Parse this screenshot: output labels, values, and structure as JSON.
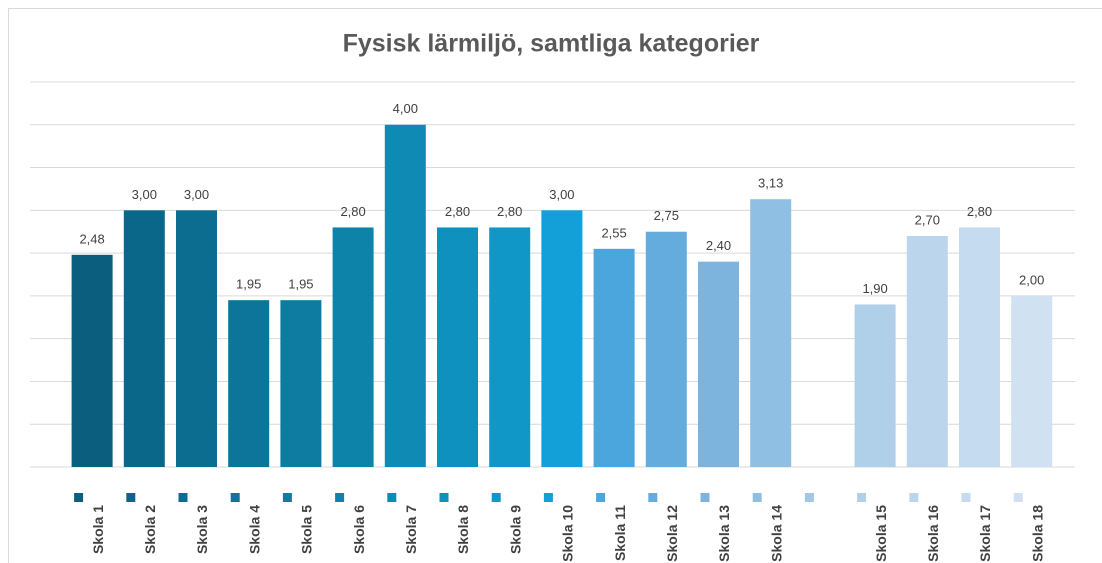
{
  "chart_data": {
    "type": "bar",
    "title": "Fysisk lärmiljö, samtliga kategorier",
    "categories": [
      "Skola 1",
      "Skola 2",
      "Skola 3",
      "Skola 4",
      "Skola 5",
      "Skola 6",
      "Skola 7",
      "Skola 8",
      "Skola 9",
      "Skola 10",
      "Skola 11",
      "Skola 12",
      "Skola 13",
      "Skola 14",
      null,
      "Skola 15",
      "Skola 16",
      "Skola 17",
      "Skola 18"
    ],
    "values": [
      2.48,
      3.0,
      3.0,
      1.95,
      1.95,
      2.8,
      4.0,
      2.8,
      2.8,
      3.0,
      2.55,
      2.75,
      2.4,
      3.13,
      null,
      1.9,
      2.7,
      2.8,
      2.0
    ],
    "value_labels": [
      "2,48",
      "3,00",
      "3,00",
      "1,95",
      "1,95",
      "2,80",
      "4,00",
      "2,80",
      "2,80",
      "3,00",
      "2,55",
      "2,75",
      "2,40",
      "3,13",
      null,
      "1,90",
      "2,70",
      "2,80",
      "2,00"
    ],
    "colors": [
      "#0b5e7e",
      "#0b6789",
      "#0c6d91",
      "#0d7599",
      "#0e7ca1",
      "#0e83aa",
      "#0f8ab5",
      "#0f91bf",
      "#1097c8",
      "#139fd8",
      "#4aa6dc",
      "#63acdd",
      "#7db4de",
      "#8fbfe2",
      "#a3c7e6",
      "#b0cfe9",
      "#bad5ec",
      "#c5dbef",
      "#d0e1f2"
    ],
    "ylim": [
      0,
      4.5
    ],
    "yticks": [
      0,
      0.5,
      1,
      1.5,
      2,
      2.5,
      3,
      3.5,
      4,
      4.5
    ],
    "grid": true
  }
}
